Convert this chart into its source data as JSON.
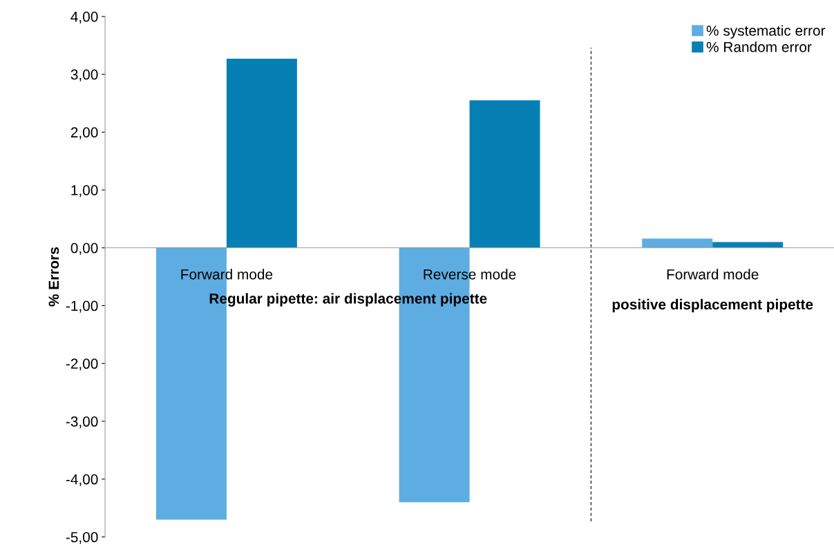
{
  "chart_data": {
    "type": "bar",
    "ylabel": "% Errors",
    "categories": [
      "Forward mode",
      "Reverse mode",
      "Forward mode"
    ],
    "series": [
      {
        "name": "% systematic error",
        "color": "#5dade2",
        "values": [
          -4.7,
          -4.4,
          0.16
        ]
      },
      {
        "name": "% Random error",
        "color": "#0680b4",
        "values": [
          3.27,
          2.55,
          0.1
        ]
      }
    ],
    "ylim": [
      -5,
      4
    ],
    "yticks": [
      {
        "value": -5,
        "label": "-5,00"
      },
      {
        "value": -4,
        "label": "-4,00"
      },
      {
        "value": -3,
        "label": "-3,00"
      },
      {
        "value": -2,
        "label": "-2,00"
      },
      {
        "value": -1,
        "label": "-1,00"
      },
      {
        "value": 0,
        "label": "0,00"
      },
      {
        "value": 1,
        "label": "1,00"
      },
      {
        "value": 2,
        "label": "2,00"
      },
      {
        "value": 3,
        "label": "3,00"
      },
      {
        "value": 4,
        "label": "4,00"
      }
    ],
    "annotations": [
      "Regular pipette: air displacement pipette",
      "positive displacement pipette"
    ],
    "legend": "top right",
    "grid": false
  }
}
